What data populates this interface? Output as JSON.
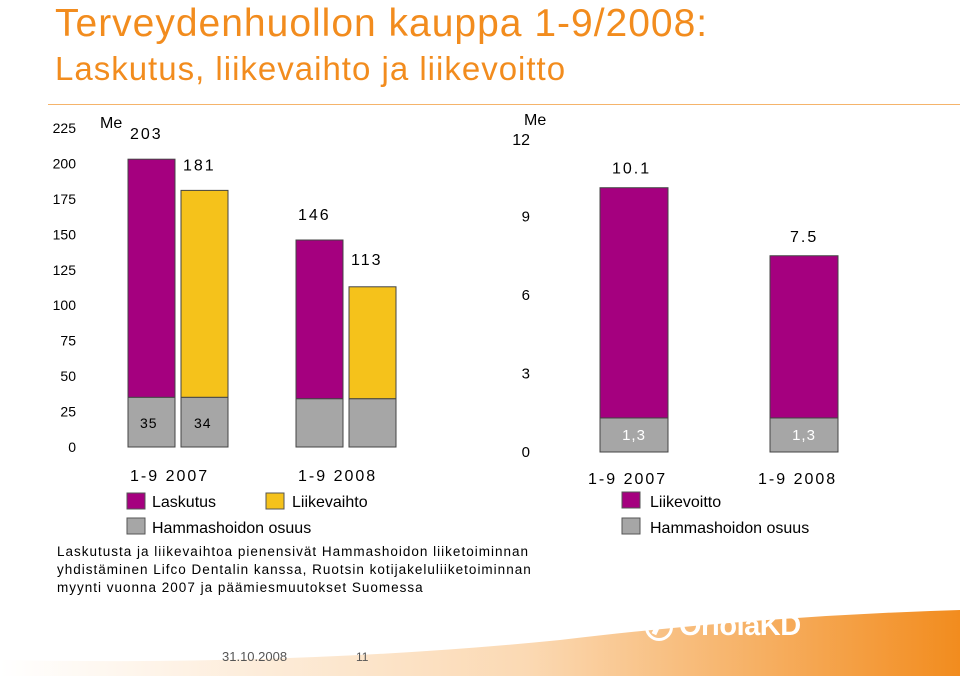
{
  "title_line1": "Terveydenhuollon kauppa 1-9/2008:",
  "title_line2": "Laskutus, liikevaihto ja liikevoitto",
  "colors": {
    "title": "#f28c1e",
    "laskutus": "#a5007f",
    "liikevaihto": "#f5c21b",
    "liikevoitto": "#a5007f",
    "hammashoidon": "#a6a6a6",
    "footer": "#f28c1e"
  },
  "chart_data": [
    {
      "type": "bar",
      "unit_label": "Me",
      "ylim": [
        0,
        225
      ],
      "yticks": [
        "0",
        "25",
        "50",
        "75",
        "100",
        "125",
        "150",
        "175",
        "200",
        "225"
      ],
      "groups": [
        "1-9 2007",
        "1-9 2008"
      ],
      "series": [
        {
          "name": "Laskutus",
          "values": [
            203,
            146
          ],
          "labels": [
            "203",
            "146"
          ]
        },
        {
          "name": "Liikevaihto",
          "values": [
            181,
            113
          ],
          "labels": [
            "181",
            "113"
          ]
        }
      ],
      "component": {
        "name": "Hammashoidon osuus",
        "values": [
          35,
          34
        ],
        "labels": [
          "35",
          "34"
        ]
      },
      "legend": [
        "Laskutus",
        "Liikevaihto",
        "Hammashoidon osuus"
      ]
    },
    {
      "type": "bar",
      "unit_label": "Me",
      "ylim": [
        0,
        12
      ],
      "yticks": [
        "0",
        "3",
        "6",
        "9",
        "12"
      ],
      "categories": [
        "1-9 2007",
        "1-9 2008"
      ],
      "series": [
        {
          "name": "Liikevoitto",
          "values": [
            10.1,
            7.5
          ],
          "labels": [
            "10.1",
            "7.5"
          ]
        }
      ],
      "component": {
        "name": "Hammashoidon osuus",
        "values": [
          1.3,
          1.3
        ],
        "labels": [
          "1,3",
          "1,3"
        ]
      },
      "legend": [
        "Liikevoitto",
        "Hammashoidon osuus"
      ]
    }
  ],
  "note": [
    "Laskutusta ja liikevaihtoa pienensivät Hammashoidon liiketoiminnan",
    "yhdistäminen Lifco Dentalin kanssa, Ruotsin kotijakeluliiketoiminnan",
    "myynti vuonna 2007 ja päämiesmuutokset Suomessa"
  ],
  "footer": {
    "date": "31.10.2008",
    "page": "11",
    "logo_text": "OriolaKD"
  }
}
